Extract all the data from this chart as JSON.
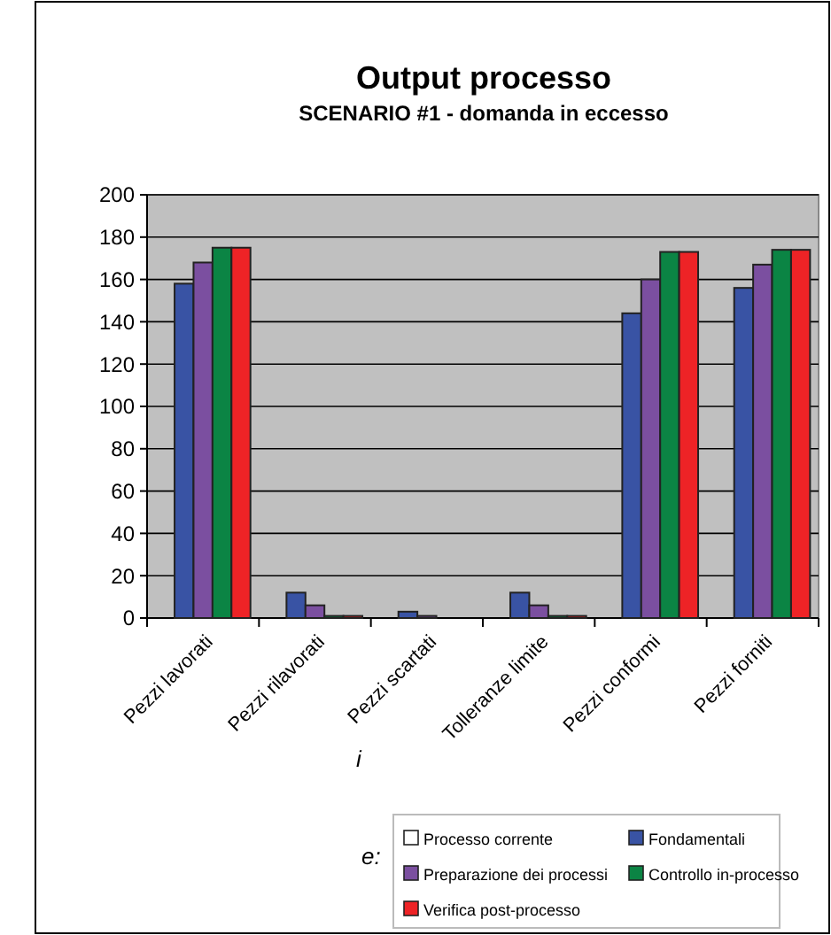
{
  "chart_data": {
    "type": "bar",
    "title": "Output processo",
    "subtitle": "SCENARIO #1 - domanda in eccesso",
    "categories": [
      "Pezzi lavorati",
      "Pezzi rilavorati",
      "Pezzi scartati",
      "Tolleranze limite",
      "Pezzi conformi",
      "Pezzi forniti"
    ],
    "series": [
      {
        "name": "Processo corrente",
        "color": "#ffffff",
        "values": [
          0,
          0,
          0,
          0,
          0,
          0
        ]
      },
      {
        "name": "Fondamentali",
        "color": "#3953a4",
        "values": [
          158,
          12,
          3,
          12,
          144,
          156
        ]
      },
      {
        "name": "Preparazione dei processi",
        "color": "#7b4fa0",
        "values": [
          168,
          6,
          1,
          6,
          160,
          167
        ]
      },
      {
        "name": "Controllo in-processo",
        "color": "#0b8444",
        "values": [
          175,
          1,
          0,
          1,
          173,
          174
        ]
      },
      {
        "name": "Verifica post-processo",
        "color": "#ee2326",
        "values": [
          175,
          1,
          0,
          1,
          173,
          174
        ]
      }
    ],
    "ylim": [
      0,
      200
    ],
    "yticks": [
      0,
      20,
      40,
      60,
      80,
      100,
      120,
      140,
      160,
      180,
      200
    ],
    "grid": "y",
    "legend": "bottom",
    "annotations": [
      "i",
      "e:"
    ]
  }
}
